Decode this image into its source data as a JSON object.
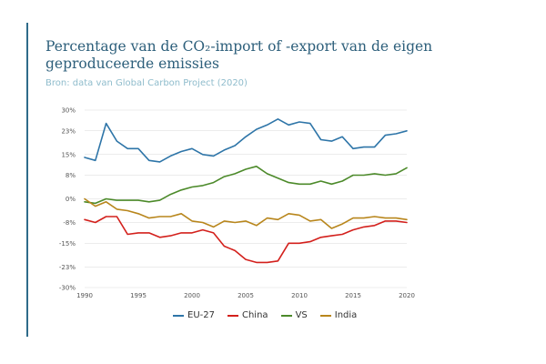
{
  "header": {
    "title": "Percentage van de CO₂-import of -export van de eigen geproduceerde emissies",
    "source": "Bron: data van Global Carbon Project (2020)"
  },
  "colors": {
    "accent": "#2f6b8a",
    "EU-27": "#2e75a8",
    "China": "#d3201c",
    "VS": "#4c8a2a",
    "India": "#b8861c",
    "grid": "#d9d9d9"
  },
  "chart_data": {
    "type": "line",
    "x": [
      1990,
      1991,
      1992,
      1993,
      1994,
      1995,
      1996,
      1997,
      1998,
      1999,
      2000,
      2001,
      2002,
      2003,
      2004,
      2005,
      2006,
      2007,
      2008,
      2009,
      2010,
      2011,
      2012,
      2013,
      2014,
      2015,
      2016,
      2017,
      2018,
      2019,
      2020
    ],
    "xticks": [
      1990,
      1995,
      2000,
      2005,
      2010,
      2015,
      2020
    ],
    "xtick_labels": [
      "1990",
      "1995",
      "2000",
      "2005",
      "2010",
      "2015",
      "2020"
    ],
    "yticks": [
      -30,
      -23,
      -15,
      -8,
      0,
      8,
      15,
      23,
      30
    ],
    "ytick_labels": [
      "-30%",
      "-23%",
      "-15%",
      "-8%",
      "0%",
      "8%",
      "15%",
      "23%",
      "30%"
    ],
    "ylim": [
      -30,
      30
    ],
    "xlim": [
      1990,
      2020
    ],
    "grid": true,
    "legend_position": "bottom",
    "series": [
      {
        "name": "EU-27",
        "color": "#2e75a8",
        "values": [
          14,
          13,
          25.5,
          19.5,
          17,
          17,
          13,
          12.5,
          14.5,
          16,
          17,
          15,
          14.5,
          16.5,
          18,
          21,
          23.5,
          25,
          27,
          25,
          26,
          25.5,
          20,
          19.5,
          21,
          17,
          17.5,
          17.5,
          21.5,
          22,
          23
        ]
      },
      {
        "name": "China",
        "color": "#d3201c",
        "values": [
          -7,
          -8,
          -6,
          -6,
          -12,
          -11.5,
          -11.5,
          -13,
          -12.5,
          -11.5,
          -11.5,
          -10.5,
          -11.5,
          -16,
          -17.5,
          -20.5,
          -21.5,
          -21.5,
          -21,
          -15,
          -15,
          -14.5,
          -13,
          -12.5,
          -12,
          -10.5,
          -9.5,
          -9,
          -7.5,
          -7.5,
          -8
        ]
      },
      {
        "name": "VS",
        "color": "#4c8a2a",
        "values": [
          -1,
          -1.5,
          0,
          -0.5,
          -0.5,
          -0.5,
          -1,
          -0.5,
          1.5,
          3,
          4,
          4.5,
          5.5,
          7.5,
          8.5,
          10,
          11,
          8.5,
          7,
          5.5,
          5,
          5,
          6,
          5,
          6,
          8,
          8,
          8.5,
          8,
          8.5,
          10.5
        ]
      },
      {
        "name": "India",
        "color": "#b8861c",
        "values": [
          0,
          -2.5,
          -1,
          -3.5,
          -4,
          -5,
          -6.5,
          -6,
          -6,
          -5,
          -7.5,
          -8,
          -9.5,
          -7.5,
          -8,
          -7.5,
          -9,
          -6.5,
          -7,
          -5,
          -5.5,
          -7.5,
          -7,
          -10,
          -8.5,
          -6.5,
          -6.5,
          -6,
          -6.5,
          -6.5,
          -7
        ]
      }
    ]
  }
}
